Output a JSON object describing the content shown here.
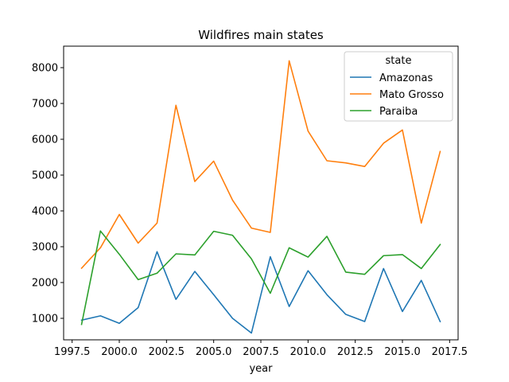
{
  "chart_data": {
    "type": "line",
    "title": "Wildfires main states",
    "xlabel": "year",
    "ylabel": "",
    "xlim": [
      1997.05,
      2017.95
    ],
    "ylim": [
      400,
      8600
    ],
    "xticks": [
      1997.5,
      2000.0,
      2002.5,
      2005.0,
      2007.5,
      2010.0,
      2012.5,
      2015.0,
      2017.5
    ],
    "xtick_labels": [
      "1997.5",
      "2000.0",
      "2002.5",
      "2005.0",
      "2007.5",
      "2010.0",
      "2012.5",
      "2015.0",
      "2017.5"
    ],
    "yticks": [
      1000,
      2000,
      3000,
      4000,
      5000,
      6000,
      7000,
      8000
    ],
    "ytick_labels": [
      "1000",
      "2000",
      "3000",
      "4000",
      "5000",
      "6000",
      "7000",
      "8000"
    ],
    "grid": false,
    "legend": {
      "title": "state",
      "placement": "top-right"
    },
    "x": [
      1998,
      1999,
      2000,
      2001,
      2002,
      2003,
      2004,
      2005,
      2006,
      2007,
      2008,
      2009,
      2010,
      2011,
      2012,
      2013,
      2014,
      2015,
      2016,
      2017
    ],
    "series": [
      {
        "name": "Amazonas",
        "color": "#1f77b4",
        "values": [
          950,
          1070,
          860,
          1300,
          2860,
          1530,
          2310,
          1660,
          1000,
          590,
          2720,
          1330,
          2330,
          1660,
          1110,
          910,
          2390,
          1190,
          2060,
          910
        ]
      },
      {
        "name": "Mato Grosso",
        "color": "#ff7f0e",
        "values": [
          2400,
          2970,
          3900,
          3100,
          3660,
          6950,
          4820,
          5390,
          4300,
          3520,
          3400,
          8190,
          6230,
          5400,
          5340,
          5240,
          5890,
          6260,
          3660,
          5660
        ]
      },
      {
        "name": "Paraiba",
        "color": "#2ca02c",
        "values": [
          830,
          3440,
          2790,
          2080,
          2260,
          2800,
          2770,
          3430,
          3320,
          2660,
          1700,
          2970,
          2710,
          3290,
          2290,
          2230,
          2750,
          2780,
          2390,
          3060
        ]
      }
    ]
  }
}
